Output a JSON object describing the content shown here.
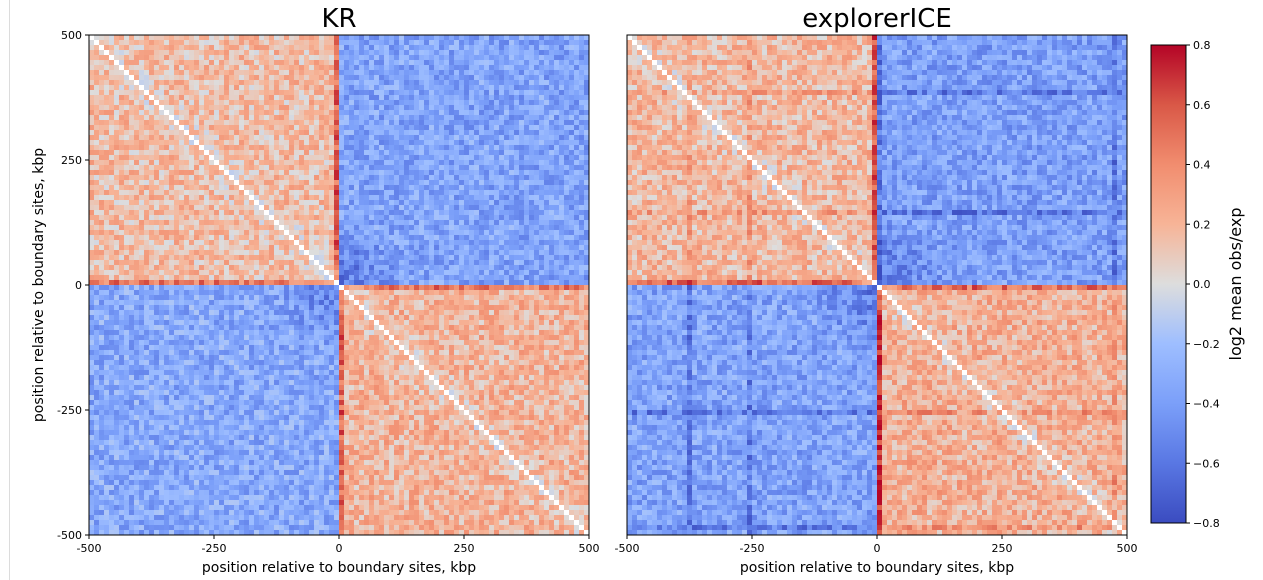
{
  "chart_data": [
    {
      "type": "heatmap",
      "title": "KR",
      "xlabel": "position relative to boundary sites, kbp",
      "ylabel": "position relative to boundary sites, kbp",
      "xlim": [
        -500,
        500
      ],
      "ylim": [
        500,
        -500
      ],
      "x_ticks": [
        -500,
        -250,
        0,
        250,
        500
      ],
      "y_ticks": [
        -500,
        -250,
        0,
        250,
        500
      ],
      "quadrant_mean_log2": {
        "upper_left": 0.16,
        "upper_right": -0.36,
        "lower_left": -0.33,
        "lower_right": 0.2
      },
      "boundary_stripe_log2": 0.55,
      "diagonal": "masked (white)",
      "x_tick_labels": [
        "-500",
        "-250",
        "0",
        "250",
        "500"
      ],
      "y_tick_labels": [
        "-500",
        "-250",
        "0",
        "250",
        "500"
      ]
    },
    {
      "type": "heatmap",
      "title": "explorerICE",
      "xlabel": "position relative to boundary sites, kbp",
      "ylabel": "",
      "xlim": [
        -500,
        500
      ],
      "ylim": [
        500,
        -500
      ],
      "x_ticks": [
        -500,
        -250,
        0,
        250,
        500
      ],
      "quadrant_mean_log2": {
        "upper_left": 0.18,
        "upper_right": -0.38,
        "lower_left": -0.36,
        "lower_right": 0.22
      },
      "boundary_stripe_log2": 0.6,
      "diagonal": "masked (white)",
      "x_tick_labels": [
        "-500",
        "-250",
        "0",
        "250",
        "500"
      ]
    }
  ],
  "colorbar": {
    "label": "log2 mean obs/exp",
    "colormap": "coolwarm",
    "vmin": -0.8,
    "vmax": 0.8,
    "ticks": [
      0.8,
      0.6,
      0.4,
      0.2,
      0.0,
      -0.2,
      -0.4,
      -0.6,
      -0.8
    ],
    "tick_labels": [
      "0.8",
      "0.6",
      "0.4",
      "0.2",
      "0.0",
      "−0.2",
      "−0.4",
      "−0.6",
      "−0.8"
    ],
    "color_low": "#3b4cc0",
    "color_mid": "#dddddd",
    "color_high": "#b40426"
  }
}
